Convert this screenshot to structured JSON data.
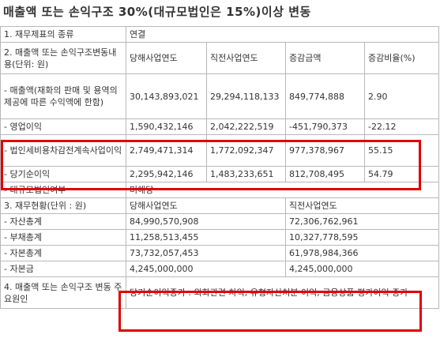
{
  "title": "매출액 또는 손익구조 30%(대규모법인은 15%)이상 변동",
  "rows": {
    "statement_type": {
      "label": "1. 재무제표의 종류",
      "value": "연결"
    },
    "section2": {
      "label": "2. 매출액 또는 손익구조변동내용(단위: 원)",
      "headers": [
        "당해사업연도",
        "직전사업연도",
        "증감금액",
        "증감비율(%)"
      ]
    },
    "revenue": {
      "label": "- 매출액(재화의 판매 및 용역의 제공에 따른 수익액에 한함)",
      "values": [
        "30,143,893,021",
        "29,294,118,133",
        "849,774,888",
        "2.90"
      ]
    },
    "operating_income": {
      "label": "- 영업이익",
      "values": [
        "1,590,432,146",
        "2,042,222,519",
        "-451,790,373",
        "-22.12"
      ]
    },
    "pretax_income": {
      "label": "- 법인세비용차감전계속사업이익",
      "values": [
        "2,749,471,314",
        "1,772,092,347",
        "977,378,967",
        "55.15"
      ]
    },
    "net_income": {
      "label": "- 당기순이익",
      "values": [
        "2,295,942,146",
        "1,483,233,651",
        "812,708,495",
        "54.79"
      ]
    },
    "large_corp": {
      "label": "- 대규모법인여부",
      "value": "미해당"
    },
    "section3": {
      "label": "3. 재무현황(단위 : 원)",
      "headers": [
        "당해사업연도",
        "직전사업연도"
      ]
    },
    "total_assets": {
      "label": "- 자산총계",
      "values": [
        "84,990,570,908",
        "72,306,762,961"
      ]
    },
    "total_liabilities": {
      "label": "- 부채총계",
      "values": [
        "11,258,513,455",
        "10,327,778,595"
      ]
    },
    "total_equity": {
      "label": "- 자본총계",
      "values": [
        "73,732,057,453",
        "61,978,984,366"
      ]
    },
    "capital": {
      "label": "- 자본금",
      "values": [
        "4,245,000,000",
        "4,245,000,000"
      ]
    },
    "section4": {
      "label": "4. 매출액 또는 손익구조 변동 주요원인",
      "value": "당기순이익증가 : 외화관련 차익, 유형자산처분 이익, 금융상품 평가이익 증가"
    }
  },
  "colors": {
    "highlight": "#e00000",
    "border": "#b8b8b8"
  }
}
